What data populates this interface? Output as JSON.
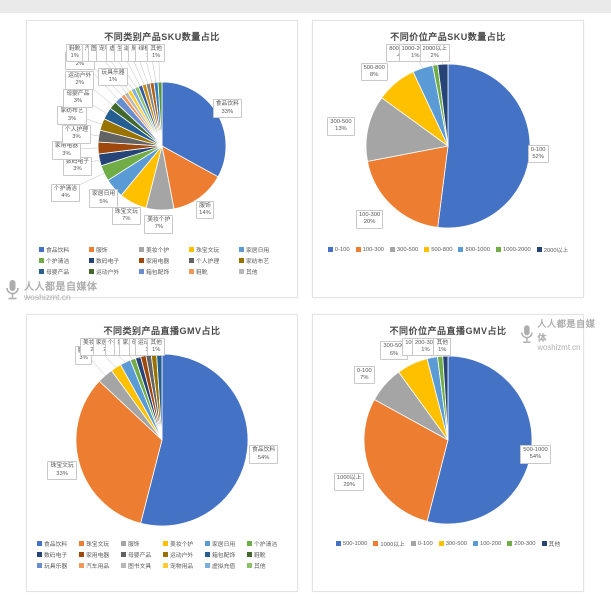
{
  "watermark": {
    "brand": "人人都是自媒体",
    "site": "woshizmt.cn"
  },
  "palette": [
    "#4472c4",
    "#ed7d31",
    "#a5a5a5",
    "#ffc000",
    "#5b9bd5",
    "#70ad47",
    "#264478",
    "#9e480e",
    "#636363",
    "#997300",
    "#255e91",
    "#43682b",
    "#698ed0",
    "#f1975a",
    "#b7b7b7",
    "#ffcd33",
    "#7cafdd",
    "#8cc168",
    "#335aa1",
    "#cb8c14",
    "#848484",
    "#b26015",
    "#327dc2",
    "#529642"
  ],
  "chart_data": [
    {
      "type": "pie",
      "title": "不同类别产品SKU数量占比",
      "legend_position": "bottom",
      "labels_style": "outside-callout",
      "slices": [
        {
          "label": "食品饮料",
          "pct": 33
        },
        {
          "label": "服饰",
          "pct": 14
        },
        {
          "label": "美妆个护",
          "pct": 7
        },
        {
          "label": "珠宝文玩",
          "pct": 7
        },
        {
          "label": "家居日用",
          "pct": 5
        },
        {
          "label": "个护清洁",
          "pct": 4
        },
        {
          "label": "数码电子",
          "pct": 3
        },
        {
          "label": "家用电器",
          "pct": 3
        },
        {
          "label": "个人护理",
          "pct": 3
        },
        {
          "label": "家纺布艺",
          "pct": 3
        },
        {
          "label": "母婴产品",
          "pct": 3
        },
        {
          "label": "运动户外",
          "pct": 2
        },
        {
          "label": "箱包配饰",
          "pct": 2
        },
        {
          "label": "鞋靴",
          "pct": 1
        },
        {
          "label": "玩具乐器",
          "pct": 1
        },
        {
          "label": "汽车用品",
          "pct": 1
        },
        {
          "label": "图书文具",
          "pct": 1
        },
        {
          "label": "宠物用品",
          "pct": 1
        },
        {
          "label": "虚拟充值",
          "pct": 1
        },
        {
          "label": "生鲜果蔬",
          "pct": 1
        },
        {
          "label": "滋补保健",
          "pct": 1
        },
        {
          "label": "厨具餐具",
          "pct": 1
        },
        {
          "label": "绿植园艺",
          "pct": 1
        },
        {
          "label": "其他",
          "pct": 1
        }
      ],
      "legend": [
        "食品饮料",
        "服饰",
        "美妆个护",
        "珠宝文玩",
        "家居日用",
        "个护清洁",
        "数码电子",
        "家用电器",
        "个人护理",
        "家纺布艺",
        "母婴产品",
        "运动户外",
        "箱包配饰",
        "鞋靴",
        "其他"
      ]
    },
    {
      "type": "pie",
      "title": "不同价位产品SKU数量占比",
      "legend_position": "bottom",
      "labels_style": "outside-callout",
      "slices": [
        {
          "label": "0-100",
          "pct": 52
        },
        {
          "label": "100-300",
          "pct": 20
        },
        {
          "label": "300-500",
          "pct": 13
        },
        {
          "label": "500-800",
          "pct": 8
        },
        {
          "label": "800-1000",
          "pct": 4
        },
        {
          "label": "1000-2000",
          "pct": 1
        },
        {
          "label": "2000以上",
          "pct": 2
        }
      ],
      "legend": [
        "0-100",
        "100-300",
        "300-500",
        "500-800",
        "800-1000",
        "1000-2000",
        "2000以上"
      ]
    },
    {
      "type": "pie",
      "title": "不同类别产品直播GMV占比",
      "legend_position": "bottom",
      "labels_style": "outside-callout",
      "slices": [
        {
          "label": "食品饮料",
          "pct": 54
        },
        {
          "label": "珠宝文玩",
          "pct": 33
        },
        {
          "label": "服饰",
          "pct": 3
        },
        {
          "label": "美妆个护",
          "pct": 2
        },
        {
          "label": "家居日用",
          "pct": 2
        },
        {
          "label": "个护清洁",
          "pct": 1
        },
        {
          "label": "数码电子",
          "pct": 1
        },
        {
          "label": "家用电器",
          "pct": 1
        },
        {
          "label": "母婴产品",
          "pct": 1
        },
        {
          "label": "运动户外",
          "pct": 1
        },
        {
          "label": "其他",
          "pct": 1
        }
      ],
      "legend": [
        "食品饮料",
        "珠宝文玩",
        "服饰",
        "美妆个护",
        "家居日用",
        "个护清洁",
        "数码电子",
        "家用电器",
        "母婴产品",
        "运动户外",
        "箱包配饰",
        "鞋靴",
        "玩具乐器",
        "汽车用品",
        "图书文具",
        "宠物用品",
        "虚拟充值",
        "其他"
      ]
    },
    {
      "type": "pie",
      "title": "不同价位产品直播GMV占比",
      "legend_position": "bottom",
      "labels_style": "outside-callout",
      "slices": [
        {
          "label": "500-1000",
          "pct": 54
        },
        {
          "label": "1000以上",
          "pct": 29
        },
        {
          "label": "0-100",
          "pct": 7
        },
        {
          "label": "300-500",
          "pct": 6
        },
        {
          "label": "100-200",
          "pct": 2
        },
        {
          "label": "200-300",
          "pct": 1
        },
        {
          "label": "其他",
          "pct": 1
        }
      ],
      "legend": [
        "500-1000",
        "1000以上",
        "0-100",
        "300-500",
        "100-200",
        "200-300",
        "其他"
      ]
    }
  ]
}
